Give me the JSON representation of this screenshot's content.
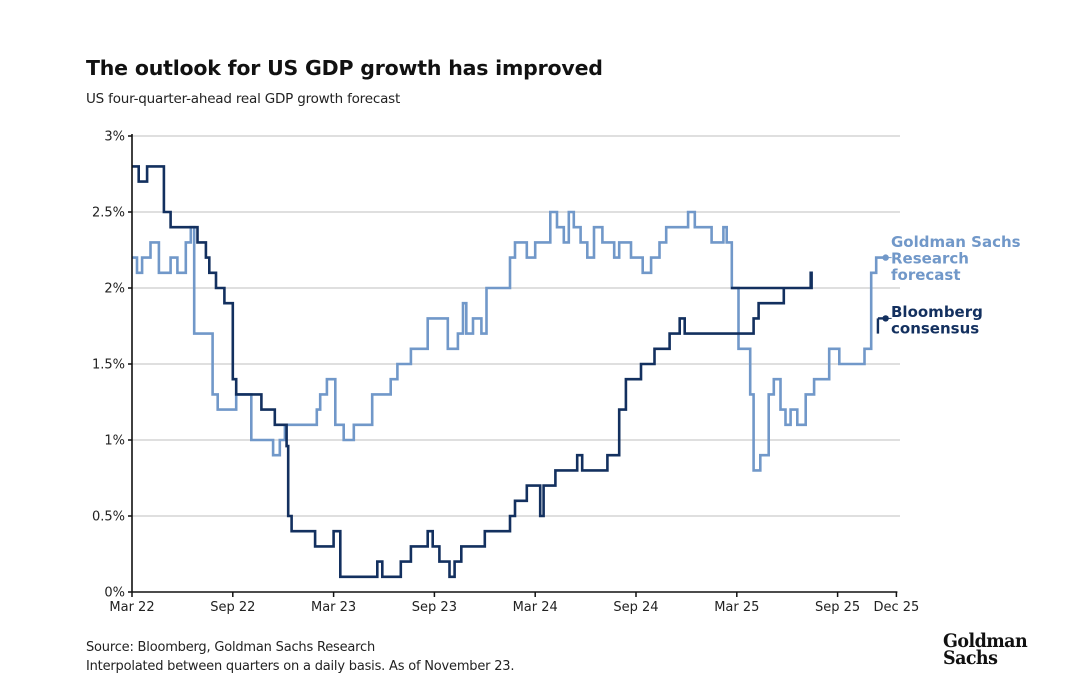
{
  "header": {
    "title": "The outlook for US GDP growth has improved",
    "subtitle": "US four-quarter-ahead real GDP growth forecast"
  },
  "footer": {
    "source": "Source: Bloomberg, Goldman Sachs Research",
    "note": "Interpolated between quarters on a daily basis. As of November 23."
  },
  "logo": {
    "line1": "Goldman",
    "line2": "Sachs"
  },
  "colors": {
    "gs": "#7198c9",
    "bloomberg": "#13305f",
    "grid": "#cccccc",
    "axis": "#111111"
  },
  "chart_data": {
    "type": "line",
    "title": "The outlook for US GDP growth has improved",
    "subtitle": "US four-quarter-ahead real GDP growth forecast",
    "xlabel": "",
    "ylabel": "",
    "x_unit": "months since Mar 2022",
    "xlim": [
      0,
      45.5
    ],
    "ylim": [
      0,
      3
    ],
    "yticks": [
      {
        "value": 0,
        "label": "0%"
      },
      {
        "value": 0.5,
        "label": "0.5%"
      },
      {
        "value": 1,
        "label": "1%"
      },
      {
        "value": 1.5,
        "label": "1.5%"
      },
      {
        "value": 2,
        "label": "2%"
      },
      {
        "value": 2.5,
        "label": "2.5%"
      },
      {
        "value": 3,
        "label": "3%"
      }
    ],
    "xticks": [
      {
        "value": 0,
        "label": "Mar 22"
      },
      {
        "value": 6,
        "label": "Sep 22"
      },
      {
        "value": 12,
        "label": "Mar 23"
      },
      {
        "value": 18,
        "label": "Sep 23"
      },
      {
        "value": 24,
        "label": "Mar 24"
      },
      {
        "value": 30,
        "label": "Sep 24"
      },
      {
        "value": 36,
        "label": "Mar 25"
      },
      {
        "value": 42,
        "label": "Sep 25"
      },
      {
        "value": 45.5,
        "label": "Dec 25"
      }
    ],
    "grid": true,
    "step": true,
    "legend": "right-end labels",
    "series": [
      {
        "name": "Goldman Sachs Research forecast",
        "label_lines": [
          "Goldman Sachs",
          "Research",
          "forecast"
        ],
        "color_key": "gs",
        "points": [
          [
            0,
            2.2
          ],
          [
            0.3,
            2.2
          ],
          [
            0.3,
            2.1
          ],
          [
            0.6,
            2.1
          ],
          [
            0.6,
            2.2
          ],
          [
            1.1,
            2.2
          ],
          [
            1.1,
            2.3
          ],
          [
            1.6,
            2.3
          ],
          [
            1.6,
            2.1
          ],
          [
            2.3,
            2.1
          ],
          [
            2.3,
            2.2
          ],
          [
            2.7,
            2.2
          ],
          [
            2.7,
            2.1
          ],
          [
            3.2,
            2.1
          ],
          [
            3.2,
            2.3
          ],
          [
            3.5,
            2.3
          ],
          [
            3.5,
            2.4
          ],
          [
            3.7,
            2.4
          ],
          [
            3.7,
            1.7
          ],
          [
            4.8,
            1.7
          ],
          [
            4.8,
            1.3
          ],
          [
            5.1,
            1.3
          ],
          [
            5.1,
            1.2
          ],
          [
            6.2,
            1.2
          ],
          [
            6.2,
            1.3
          ],
          [
            7.1,
            1.3
          ],
          [
            7.1,
            1.0
          ],
          [
            8.4,
            1.0
          ],
          [
            8.4,
            0.9
          ],
          [
            8.8,
            0.9
          ],
          [
            8.8,
            1.0
          ],
          [
            9.1,
            1.0
          ],
          [
            9.1,
            1.1
          ],
          [
            11.0,
            1.1
          ],
          [
            11.0,
            1.2
          ],
          [
            11.2,
            1.2
          ],
          [
            11.2,
            1.3
          ],
          [
            11.6,
            1.3
          ],
          [
            11.6,
            1.4
          ],
          [
            12.1,
            1.4
          ],
          [
            12.1,
            1.1
          ],
          [
            12.6,
            1.1
          ],
          [
            12.6,
            1.0
          ],
          [
            13.2,
            1.0
          ],
          [
            13.2,
            1.1
          ],
          [
            14.3,
            1.1
          ],
          [
            14.3,
            1.3
          ],
          [
            15.4,
            1.3
          ],
          [
            15.4,
            1.4
          ],
          [
            15.8,
            1.4
          ],
          [
            15.8,
            1.5
          ],
          [
            16.6,
            1.5
          ],
          [
            16.6,
            1.6
          ],
          [
            17.6,
            1.6
          ],
          [
            17.6,
            1.8
          ],
          [
            18.8,
            1.8
          ],
          [
            18.8,
            1.6
          ],
          [
            19.4,
            1.6
          ],
          [
            19.4,
            1.7
          ],
          [
            19.7,
            1.7
          ],
          [
            19.7,
            1.9
          ],
          [
            19.9,
            1.9
          ],
          [
            19.9,
            1.7
          ],
          [
            20.3,
            1.7
          ],
          [
            20.3,
            1.8
          ],
          [
            20.8,
            1.8
          ],
          [
            20.8,
            1.7
          ],
          [
            21.1,
            1.7
          ],
          [
            21.1,
            2.0
          ],
          [
            22.5,
            2.0
          ],
          [
            22.5,
            2.2
          ],
          [
            22.8,
            2.2
          ],
          [
            22.8,
            2.3
          ],
          [
            23.5,
            2.3
          ],
          [
            23.5,
            2.2
          ],
          [
            24.0,
            2.2
          ],
          [
            24.0,
            2.3
          ],
          [
            24.9,
            2.3
          ],
          [
            24.9,
            2.5
          ],
          [
            25.3,
            2.5
          ],
          [
            25.3,
            2.4
          ],
          [
            25.7,
            2.4
          ],
          [
            25.7,
            2.3
          ],
          [
            26.0,
            2.3
          ],
          [
            26.0,
            2.5
          ],
          [
            26.3,
            2.5
          ],
          [
            26.3,
            2.4
          ],
          [
            26.7,
            2.4
          ],
          [
            26.7,
            2.3
          ],
          [
            27.1,
            2.3
          ],
          [
            27.1,
            2.2
          ],
          [
            27.5,
            2.2
          ],
          [
            27.5,
            2.4
          ],
          [
            28.0,
            2.4
          ],
          [
            28.0,
            2.3
          ],
          [
            28.7,
            2.3
          ],
          [
            28.7,
            2.2
          ],
          [
            29.0,
            2.2
          ],
          [
            29.0,
            2.3
          ],
          [
            29.7,
            2.3
          ],
          [
            29.7,
            2.2
          ],
          [
            30.4,
            2.2
          ],
          [
            30.4,
            2.1
          ],
          [
            30.9,
            2.1
          ],
          [
            30.9,
            2.2
          ],
          [
            31.4,
            2.2
          ],
          [
            31.4,
            2.3
          ],
          [
            31.8,
            2.3
          ],
          [
            31.8,
            2.4
          ],
          [
            33.1,
            2.4
          ],
          [
            33.1,
            2.5
          ],
          [
            33.5,
            2.5
          ],
          [
            33.5,
            2.4
          ],
          [
            34.5,
            2.4
          ],
          [
            34.5,
            2.3
          ],
          [
            35.2,
            2.3
          ],
          [
            35.2,
            2.4
          ],
          [
            35.4,
            2.4
          ],
          [
            35.4,
            2.3
          ],
          [
            35.7,
            2.3
          ],
          [
            35.7,
            2.0
          ],
          [
            36.1,
            2.0
          ],
          [
            36.1,
            1.6
          ],
          [
            36.8,
            1.6
          ],
          [
            36.8,
            1.3
          ],
          [
            37.0,
            1.3
          ],
          [
            37.0,
            0.8
          ],
          [
            37.4,
            0.8
          ],
          [
            37.4,
            0.9
          ],
          [
            37.9,
            0.9
          ],
          [
            37.9,
            1.3
          ],
          [
            38.2,
            1.3
          ],
          [
            38.2,
            1.4
          ],
          [
            38.6,
            1.4
          ],
          [
            38.6,
            1.2
          ],
          [
            38.9,
            1.2
          ],
          [
            38.9,
            1.1
          ],
          [
            39.2,
            1.1
          ],
          [
            39.2,
            1.2
          ],
          [
            39.6,
            1.2
          ],
          [
            39.6,
            1.1
          ],
          [
            40.1,
            1.1
          ],
          [
            40.1,
            1.3
          ],
          [
            40.6,
            1.3
          ],
          [
            40.6,
            1.4
          ],
          [
            41.5,
            1.4
          ],
          [
            41.5,
            1.6
          ],
          [
            42.1,
            1.6
          ],
          [
            42.1,
            1.5
          ],
          [
            43.6,
            1.5
          ],
          [
            43.6,
            1.6
          ],
          [
            44.0,
            1.6
          ],
          [
            44.0,
            2.1
          ],
          [
            44.3,
            2.1
          ],
          [
            44.3,
            2.2
          ],
          [
            44.8,
            2.2
          ]
        ]
      },
      {
        "name": "Bloomberg consensus",
        "label_lines": [
          "Bloomberg",
          "consensus"
        ],
        "color_key": "bloomberg",
        "points": [
          [
            0,
            2.8
          ],
          [
            0.4,
            2.8
          ],
          [
            0.4,
            2.7
          ],
          [
            0.9,
            2.7
          ],
          [
            0.9,
            2.8
          ],
          [
            1.9,
            2.8
          ],
          [
            1.9,
            2.5
          ],
          [
            2.3,
            2.5
          ],
          [
            2.3,
            2.4
          ],
          [
            3.9,
            2.4
          ],
          [
            3.9,
            2.3
          ],
          [
            4.4,
            2.3
          ],
          [
            4.4,
            2.2
          ],
          [
            4.6,
            2.2
          ],
          [
            4.6,
            2.1
          ],
          [
            5.0,
            2.1
          ],
          [
            5.0,
            2.0
          ],
          [
            5.5,
            2.0
          ],
          [
            5.5,
            1.9
          ],
          [
            6.0,
            1.9
          ],
          [
            6.0,
            1.4
          ],
          [
            6.2,
            1.4
          ],
          [
            6.2,
            1.3
          ],
          [
            7.7,
            1.3
          ],
          [
            7.7,
            1.2
          ],
          [
            8.5,
            1.2
          ],
          [
            8.5,
            1.1
          ],
          [
            9.2,
            1.1
          ],
          [
            9.2,
            0.96
          ],
          [
            9.3,
            0.96
          ],
          [
            9.3,
            0.5
          ],
          [
            9.5,
            0.5
          ],
          [
            9.5,
            0.4
          ],
          [
            10.9,
            0.4
          ],
          [
            10.9,
            0.3
          ],
          [
            12.0,
            0.3
          ],
          [
            12.0,
            0.4
          ],
          [
            12.4,
            0.4
          ],
          [
            12.4,
            0.1
          ],
          [
            14.6,
            0.1
          ],
          [
            14.6,
            0.2
          ],
          [
            14.9,
            0.2
          ],
          [
            14.9,
            0.1
          ],
          [
            16.0,
            0.1
          ],
          [
            16.0,
            0.2
          ],
          [
            16.6,
            0.2
          ],
          [
            16.6,
            0.3
          ],
          [
            17.6,
            0.3
          ],
          [
            17.6,
            0.4
          ],
          [
            17.9,
            0.4
          ],
          [
            17.9,
            0.3
          ],
          [
            18.3,
            0.3
          ],
          [
            18.3,
            0.2
          ],
          [
            18.9,
            0.2
          ],
          [
            18.9,
            0.1
          ],
          [
            19.2,
            0.1
          ],
          [
            19.2,
            0.2
          ],
          [
            19.6,
            0.2
          ],
          [
            19.6,
            0.3
          ],
          [
            21.0,
            0.3
          ],
          [
            21.0,
            0.4
          ],
          [
            22.5,
            0.4
          ],
          [
            22.5,
            0.5
          ],
          [
            22.8,
            0.5
          ],
          [
            22.8,
            0.6
          ],
          [
            23.5,
            0.6
          ],
          [
            23.5,
            0.7
          ],
          [
            24.3,
            0.7
          ],
          [
            24.3,
            0.5
          ],
          [
            24.5,
            0.5
          ],
          [
            24.5,
            0.7
          ],
          [
            25.2,
            0.7
          ],
          [
            25.2,
            0.8
          ],
          [
            26.5,
            0.8
          ],
          [
            26.5,
            0.9
          ],
          [
            26.8,
            0.9
          ],
          [
            26.8,
            0.8
          ],
          [
            28.3,
            0.8
          ],
          [
            28.3,
            0.9
          ],
          [
            29.0,
            0.9
          ],
          [
            29.0,
            1.2
          ],
          [
            29.4,
            1.2
          ],
          [
            29.4,
            1.4
          ],
          [
            30.3,
            1.4
          ],
          [
            30.3,
            1.5
          ],
          [
            31.1,
            1.5
          ],
          [
            31.1,
            1.6
          ],
          [
            32.0,
            1.6
          ],
          [
            32.0,
            1.7
          ],
          [
            32.6,
            1.7
          ],
          [
            32.6,
            1.8
          ],
          [
            32.9,
            1.8
          ],
          [
            32.9,
            1.7
          ],
          [
            37.0,
            1.7
          ],
          [
            37.0,
            1.8
          ],
          [
            37.3,
            1.8
          ],
          [
            37.3,
            1.9
          ],
          [
            38.8,
            1.9
          ],
          [
            38.8,
            2.0
          ],
          [
            40.4,
            2.0
          ],
          [
            40.4,
            2.1
          ],
          [
            40.45,
            2.1
          ],
          [
            40.45,
            2.0
          ],
          [
            35.65,
            2.0
          ]
        ]
      }
    ]
  }
}
